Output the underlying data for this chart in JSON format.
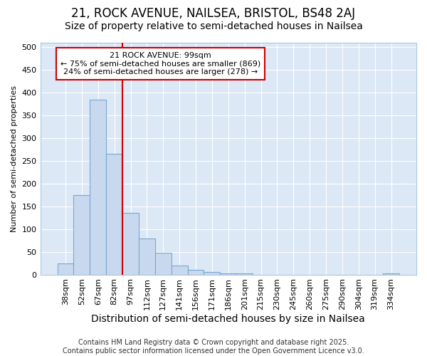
{
  "title1": "21, ROCK AVENUE, NAILSEA, BRISTOL, BS48 2AJ",
  "title2": "Size of property relative to semi-detached houses in Nailsea",
  "xlabel": "Distribution of semi-detached houses by size in Nailsea",
  "ylabel": "Number of semi-detached properties",
  "categories": [
    "38sqm",
    "52sqm",
    "67sqm",
    "82sqm",
    "97sqm",
    "112sqm",
    "127sqm",
    "141sqm",
    "156sqm",
    "171sqm",
    "186sqm",
    "201sqm",
    "215sqm",
    "230sqm",
    "245sqm",
    "260sqm",
    "275sqm",
    "290sqm",
    "304sqm",
    "319sqm",
    "334sqm"
  ],
  "values": [
    25,
    175,
    385,
    265,
    135,
    80,
    48,
    20,
    10,
    5,
    2,
    2,
    0,
    0,
    0,
    0,
    0,
    0,
    0,
    0,
    2
  ],
  "bar_color": "#c8d8ee",
  "bar_edge_color": "#7aa8d0",
  "vline_x_index": 4,
  "vline_color": "#cc0000",
  "annotation_text": "21 ROCK AVENUE: 99sqm\n← 75% of semi-detached houses are smaller (869)\n24% of semi-detached houses are larger (278) →",
  "annotation_box_color": "white",
  "annotation_box_edge_color": "#cc0000",
  "ylim": [
    0,
    510
  ],
  "yticks": [
    0,
    50,
    100,
    150,
    200,
    250,
    300,
    350,
    400,
    450,
    500
  ],
  "fig_bg_color": "#ffffff",
  "plot_bg_color": "#dce8f5",
  "footer": "Contains HM Land Registry data © Crown copyright and database right 2025.\nContains public sector information licensed under the Open Government Licence v3.0.",
  "title1_fontsize": 12,
  "title2_fontsize": 10,
  "xlabel_fontsize": 10,
  "ylabel_fontsize": 8,
  "tick_fontsize": 8,
  "annot_fontsize": 8,
  "footer_fontsize": 7
}
